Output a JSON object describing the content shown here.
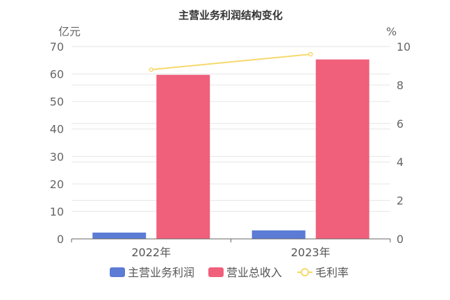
{
  "chart_data": {
    "type": "bar",
    "title": "主营业务利润结构变化",
    "categories": [
      "2022年",
      "2023年"
    ],
    "y_left": {
      "unit": "亿元",
      "min": 0,
      "max": 70,
      "ticks": [
        "0",
        "10",
        "20",
        "30",
        "40",
        "50",
        "60",
        "70"
      ]
    },
    "y_right": {
      "unit": "%",
      "min": 0,
      "max": 10,
      "ticks": [
        "0",
        "2",
        "4",
        "6",
        "8",
        "10"
      ]
    },
    "series": [
      {
        "name": "主营业务利润",
        "type": "bar",
        "axis": "left",
        "color": "#5b7bd5",
        "values": [
          2.3,
          3.1
        ]
      },
      {
        "name": "营业总收入",
        "type": "bar",
        "axis": "left",
        "color": "#f0607b",
        "values": [
          59.7,
          65.3
        ]
      },
      {
        "name": "毛利率",
        "type": "line",
        "axis": "right",
        "color": "#f7d96b",
        "values": [
          8.8,
          9.6
        ]
      }
    ],
    "grid": true,
    "legend_position": "bottom"
  }
}
